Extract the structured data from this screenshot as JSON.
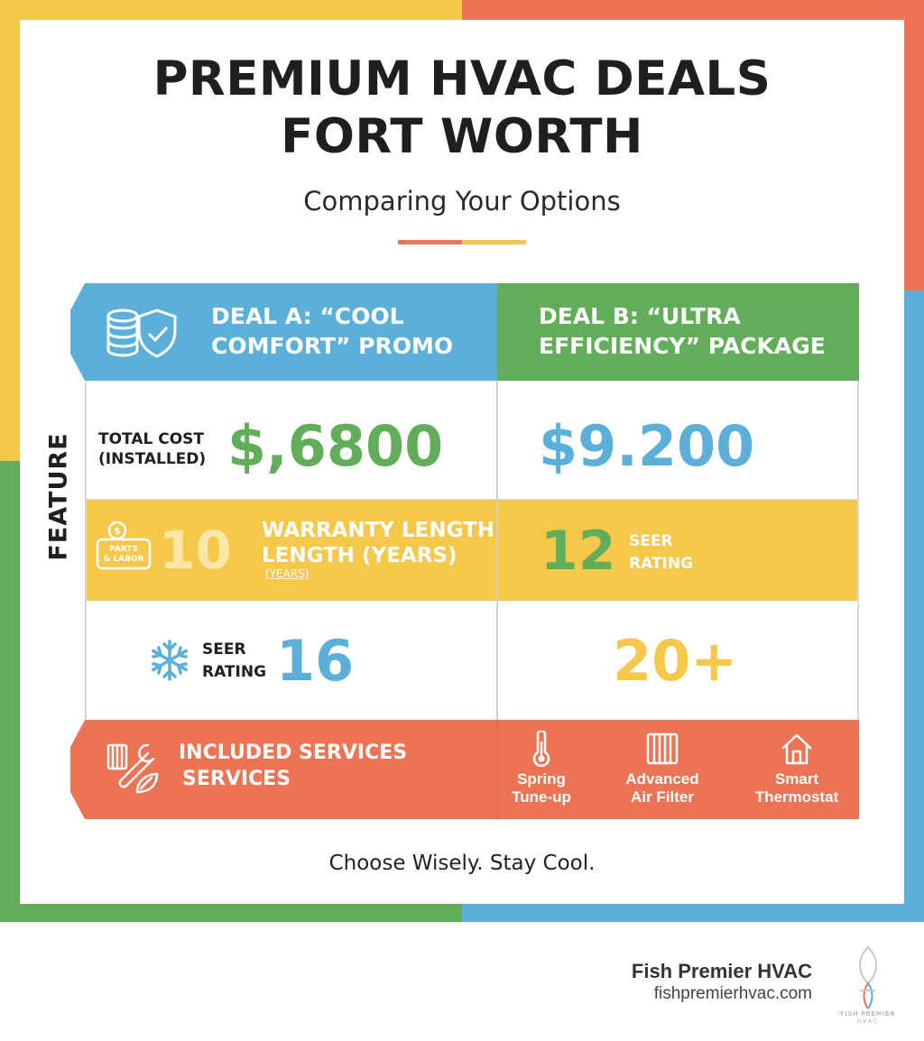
{
  "title_line1": "PREMIUM HVAC DEALS",
  "title_line2": "FORT WORTH",
  "subtitle": "Comparing Your Options",
  "feature_label": "FEATURE",
  "deal_a": {
    "header_line1": "DEAL A: “COOL",
    "header_line2": "COMFORT” PROMO",
    "cost_label_line1": "TOTAL COST",
    "cost_label_line2": "(INSTALLED)",
    "cost_value": "$,6800",
    "badge_line1": "PARTS",
    "badge_line2": "& LABOR",
    "warranty_value": "10",
    "warranty_label_line1": "WARRANTY LENGTH",
    "warranty_label_line2": "LENGTH (YEARS)",
    "warranty_label_line3": "(YEARS)",
    "seer_label_line1": "SEER",
    "seer_label_line2": "RATING",
    "seer_value": "16",
    "services_line1": "INCLUDED SERVICES",
    "services_line2": "SERVICES"
  },
  "deal_b": {
    "header_line1": "DEAL B: “ULTRA",
    "header_line2": "EFFICIENCY” PACKAGE",
    "cost_value": "$9.200",
    "warranty_value": "12",
    "warranty_label_line1": "SEER",
    "warranty_label_line2": "RATING",
    "seer_value": "20+",
    "services": [
      {
        "line1": "Spring",
        "line2": "Tune-up",
        "icon": "thermometer-icon"
      },
      {
        "line1": "Advanced",
        "line2": "Air Filter",
        "icon": "air-filter-icon"
      },
      {
        "line1": "Smart",
        "line2": "Thermostat",
        "icon": "house-icon"
      }
    ]
  },
  "tagline": "Choose Wisely. Stay Cool.",
  "brand": {
    "name": "Fish Premier HVAC",
    "url": "fishpremierhvac.com",
    "logo_text": "FISH PREMIER",
    "logo_subtext": "HVAC"
  },
  "colors": {
    "blue": "#5bafd9",
    "green": "#62ad5a",
    "yellow": "#f5c84c",
    "orange": "#ec7454"
  }
}
